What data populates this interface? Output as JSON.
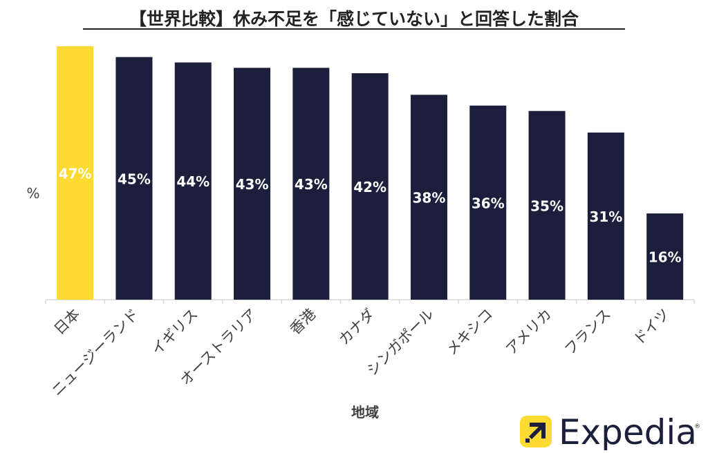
{
  "chart_data": {
    "type": "bar",
    "title": "【世界比較】休み不足を「感じていない」と回答した割合",
    "xlabel": "地域",
    "ylabel": "%",
    "categories": [
      "日本",
      "ニュージーランド",
      "イギリス",
      "オーストラリア",
      "香港",
      "カナダ",
      "シンガポール",
      "メキシコ",
      "アメリカ",
      "フランス",
      "ドイツ"
    ],
    "values": [
      47,
      45,
      44,
      43,
      43,
      42,
      38,
      36,
      35,
      31,
      16
    ],
    "value_labels": [
      "47%",
      "45%",
      "44%",
      "43%",
      "43%",
      "42%",
      "38%",
      "36%",
      "35%",
      "31%",
      "16%"
    ],
    "ylim": [
      0,
      47
    ],
    "grid": false,
    "highlight_index": 0,
    "colors": {
      "highlight": "#FDDB32",
      "default": "#1B1F3B",
      "highlight_label": "#FFFFFF",
      "axis": "#D9D9D9",
      "text": "#404040"
    }
  },
  "logo": {
    "text": "Expedia",
    "registered": "®",
    "color": "#1B1F3B",
    "badge_color": "#FDDB32"
  }
}
